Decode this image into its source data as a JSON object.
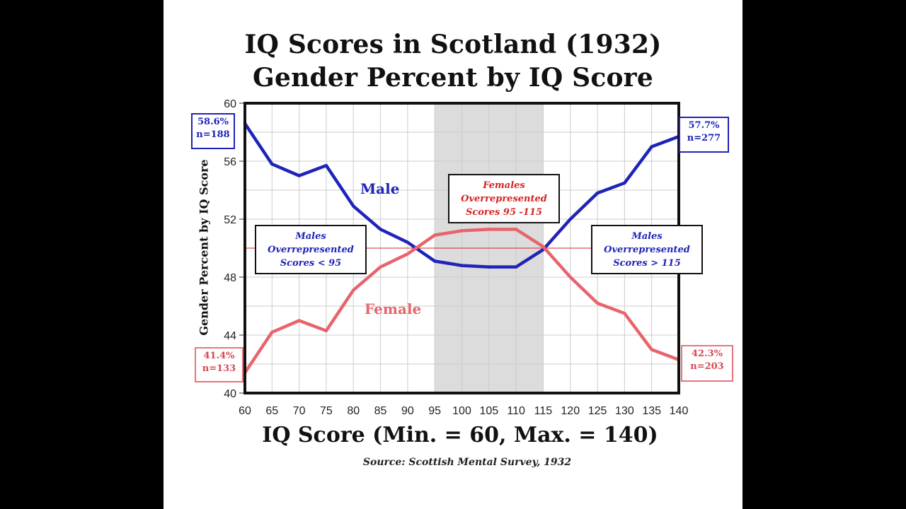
{
  "chart_data": {
    "type": "line",
    "title": "IQ Scores in Scotland (1932)",
    "subtitle": "Gender Percent  by IQ Score",
    "xlabel": "IQ Score (Min. = 60, Max. = 140)",
    "ylabel": "Gender Percent by IQ Score",
    "source": "Source: Scottish Mental Survey, 1932",
    "x": [
      60,
      65,
      70,
      75,
      80,
      85,
      90,
      95,
      100,
      105,
      110,
      115,
      120,
      125,
      130,
      135,
      140
    ],
    "xlim": [
      60,
      140
    ],
    "ylim": [
      40,
      60
    ],
    "yticks": [
      40,
      44,
      48,
      52,
      56,
      60
    ],
    "grid": true,
    "reference_line": 50,
    "shaded_region": [
      95,
      115
    ],
    "series": [
      {
        "name": "Male",
        "color": "#1f24b8",
        "values": [
          58.6,
          55.8,
          55.0,
          55.7,
          52.9,
          51.3,
          50.4,
          49.1,
          48.8,
          48.7,
          48.7,
          49.9,
          52.0,
          53.8,
          54.5,
          57.0,
          57.7
        ]
      },
      {
        "name": "Female",
        "color": "#e8646c",
        "values": [
          41.4,
          44.2,
          45.0,
          44.3,
          47.1,
          48.7,
          49.6,
          50.9,
          51.2,
          51.3,
          51.3,
          50.1,
          48.0,
          46.2,
          45.5,
          43.0,
          42.3
        ]
      }
    ],
    "annotations": {
      "male_start": {
        "pct": "58.6%",
        "n": "n=188"
      },
      "male_end": {
        "pct": "57.7%",
        "n": "n=277"
      },
      "female_start": {
        "pct": "41.4%",
        "n": "n=133"
      },
      "female_end": {
        "pct": "42.3%",
        "n": "n=203"
      },
      "left_box": [
        "Males",
        "Overrepresented",
        "Scores < 95"
      ],
      "middle_box": [
        "Females",
        "Overrepresented",
        "Scores 95 -115"
      ],
      "right_box": [
        "Males",
        "Overrepresented",
        "Scores > 115"
      ]
    }
  },
  "colors": {
    "male": "#1f24b8",
    "female": "#e8646c",
    "reference": "#d42424",
    "shade": "#dcdcdc",
    "grid": "#cccccc"
  }
}
